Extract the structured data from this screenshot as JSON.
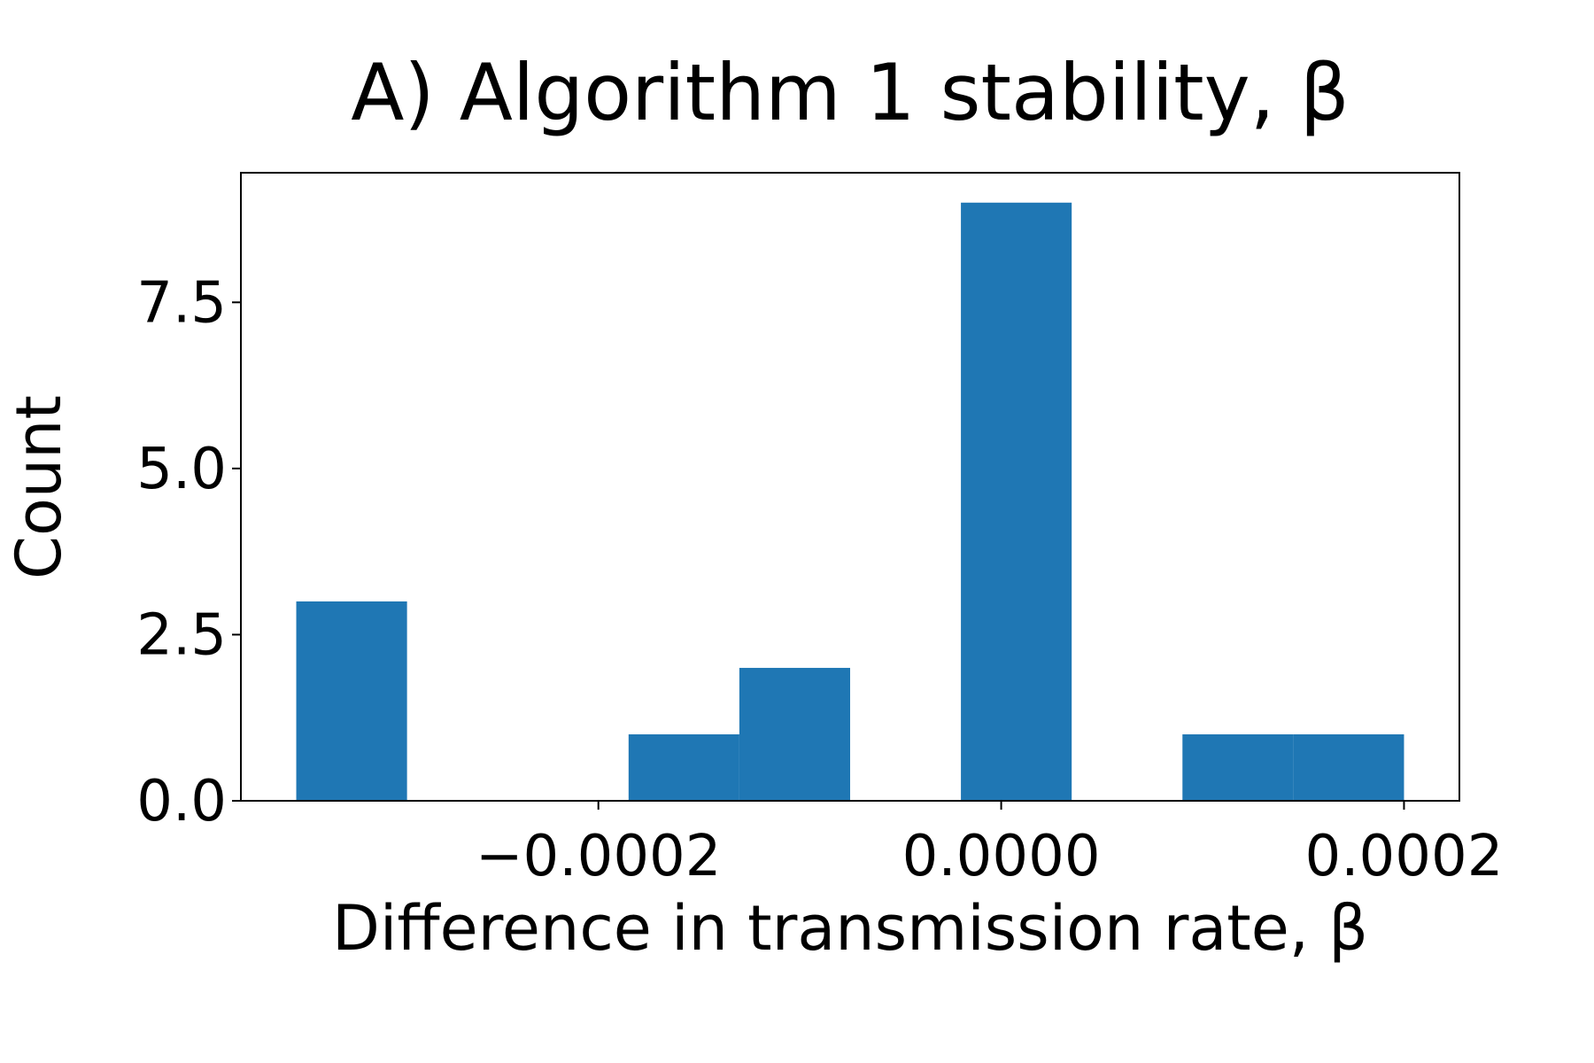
{
  "chart_data": {
    "type": "histogram",
    "title": "A) Algorithm 1 stability, β",
    "x_label": "Difference in transmission rate, β",
    "y_label": "Count",
    "bins": [
      -0.00035,
      -0.000295,
      -0.00024,
      -0.000185,
      -0.00013,
      -7.5e-05,
      -2e-05,
      3.5e-05,
      9e-05,
      0.000145,
      0.0002
    ],
    "counts": [
      3,
      0,
      0,
      1,
      2,
      0,
      9,
      0,
      1,
      1
    ],
    "color": "#1f77b4",
    "xlim": [
      -0.0003775,
      0.0002275
    ],
    "xticks": [
      {
        "value": -0.0002,
        "label": "−0.0002"
      },
      {
        "value": 0,
        "label": "0.0000"
      },
      0.0002
    ],
    "ylim": [
      0,
      9.45
    ],
    "yticks": [
      {
        "value": 0,
        "label": "0.0"
      },
      2.5,
      {
        "value": 5,
        "label": "5.0"
      },
      7.5
    ],
    "grid": false
  }
}
